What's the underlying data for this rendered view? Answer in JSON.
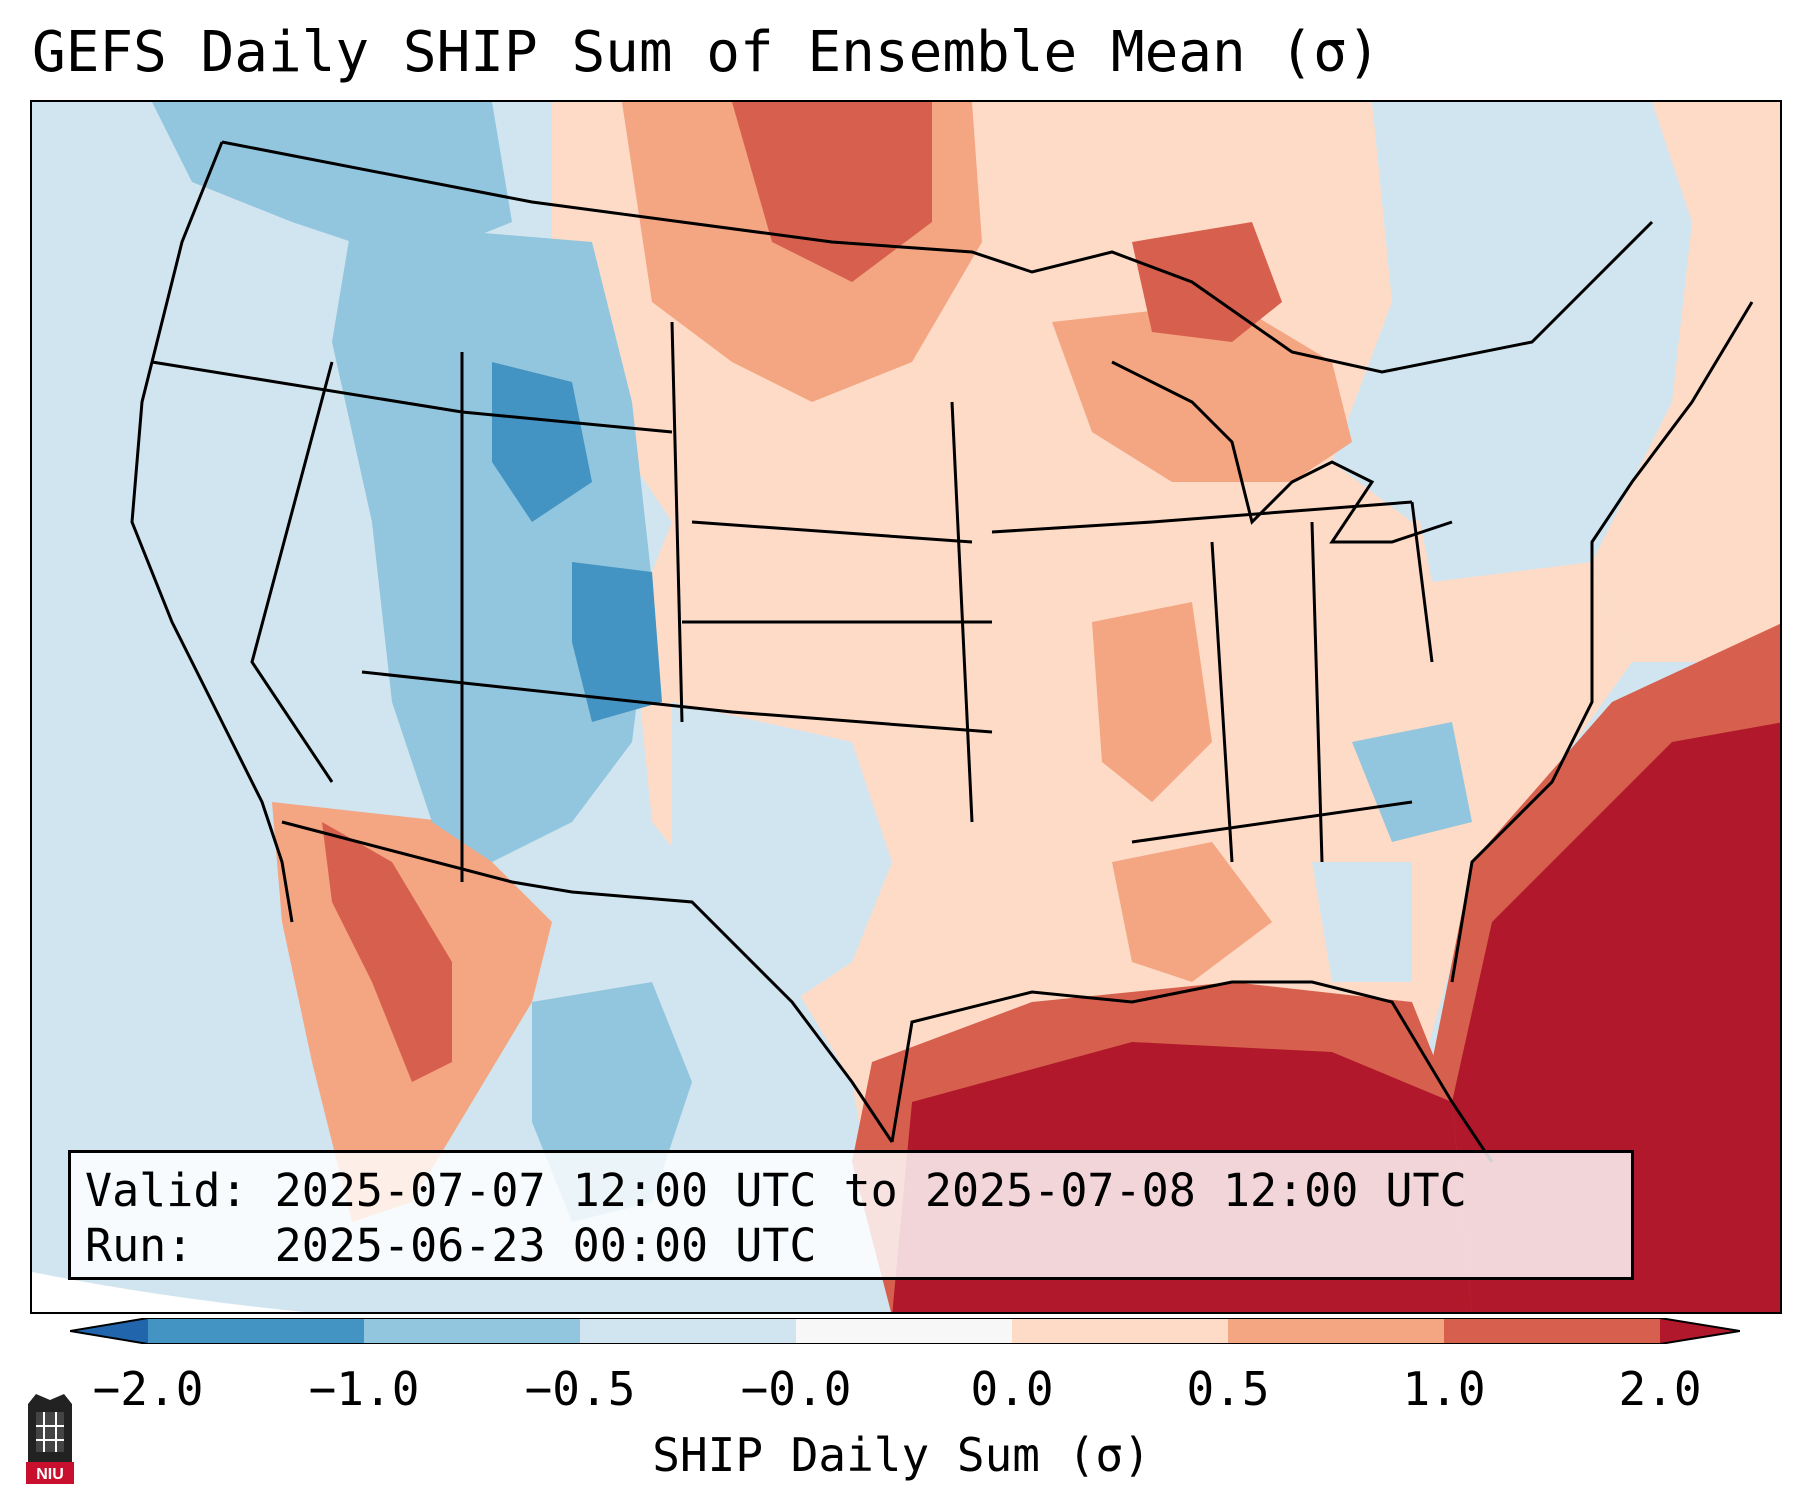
{
  "header": {
    "title": "GEFS Daily SHIP Sum of Ensemble Mean (σ)"
  },
  "info": {
    "valid_line": "Valid: 2025-07-07 12:00 UTC to 2025-07-08 12:00 UTC",
    "run_line": "Run:   2025-06-23 00:00 UTC"
  },
  "colorbar": {
    "label": "SHIP Daily Sum (σ)",
    "ticks": [
      "−2.0",
      "−1.0",
      "−0.5",
      "−0.0",
      "0.0",
      "0.5",
      "1.0",
      "2.0"
    ],
    "colors": [
      "#2166ac",
      "#4393c3",
      "#92c5de",
      "#d1e5f0",
      "#f7f7f7",
      "#fddbc7",
      "#f4a582",
      "#d6604d",
      "#b2182b"
    ]
  },
  "logo": {
    "text": "NIU"
  }
}
